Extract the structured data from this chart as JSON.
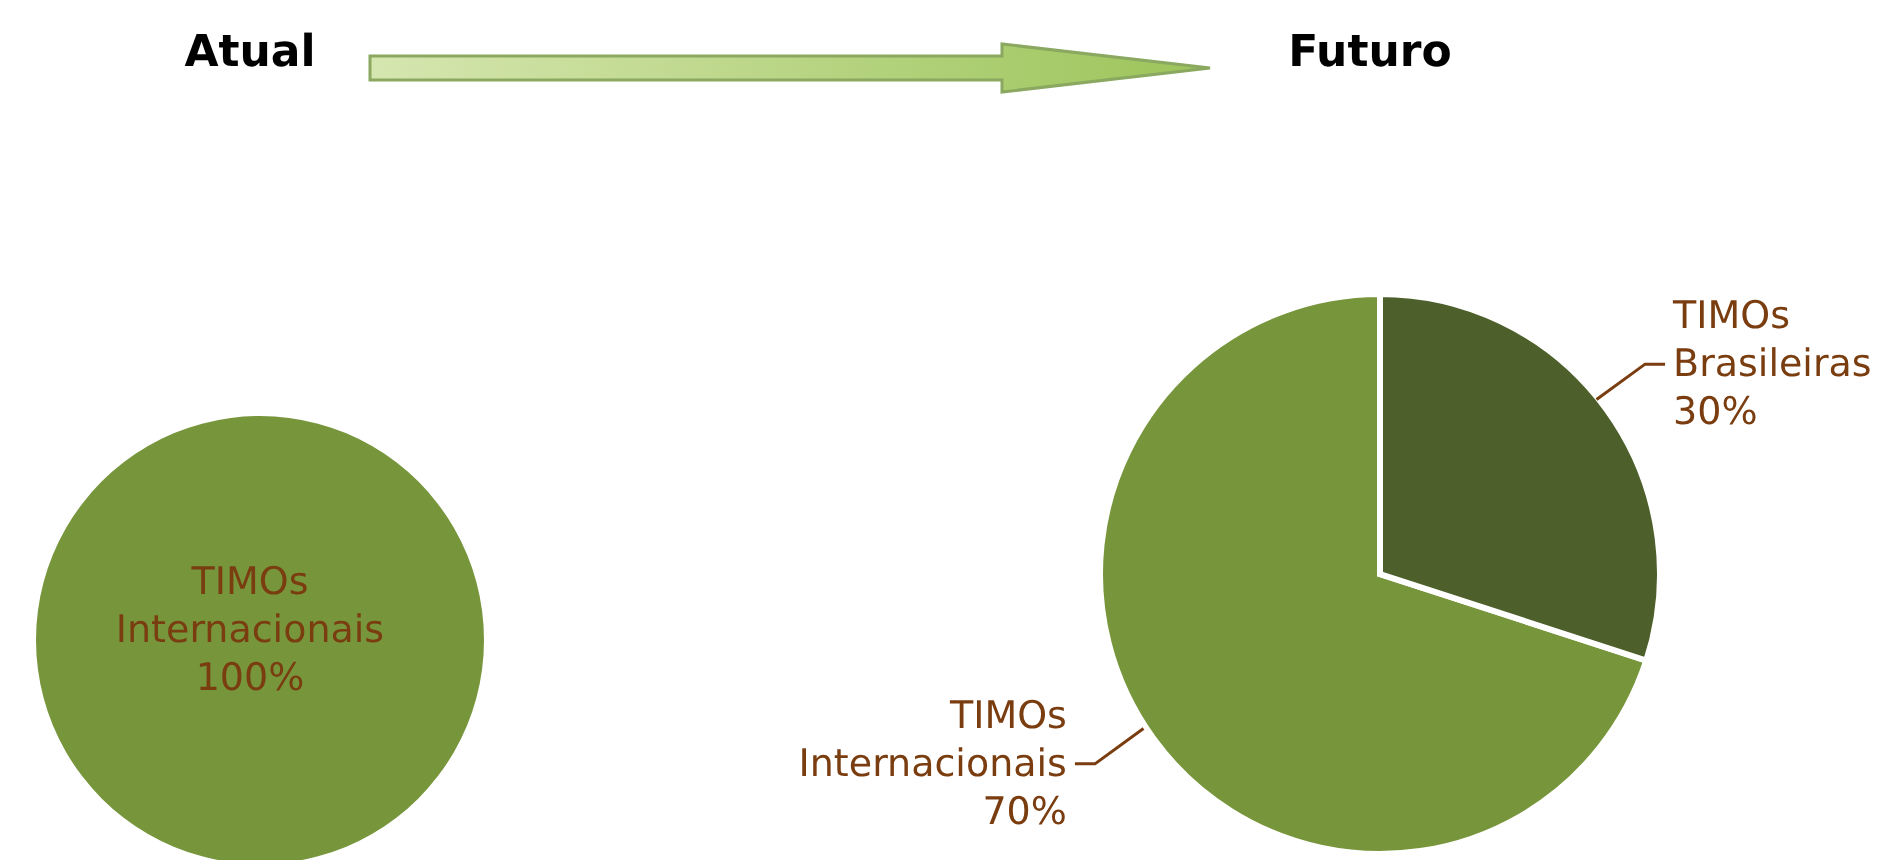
{
  "chart_data": [
    {
      "type": "pie",
      "title": "Atual",
      "categories": [
        "TIMOs Internacionais"
      ],
      "values": [
        100
      ],
      "value_labels": [
        "100%"
      ],
      "colors": [
        "#77963c"
      ]
    },
    {
      "type": "pie",
      "title": "Futuro",
      "categories": [
        "TIMOs Internacionais",
        "TIMOs Brasileiras"
      ],
      "values": [
        70,
        30
      ],
      "value_labels": [
        "70%",
        "30%"
      ],
      "colors": [
        "#77963c",
        "#4d5f2a"
      ]
    }
  ]
}
